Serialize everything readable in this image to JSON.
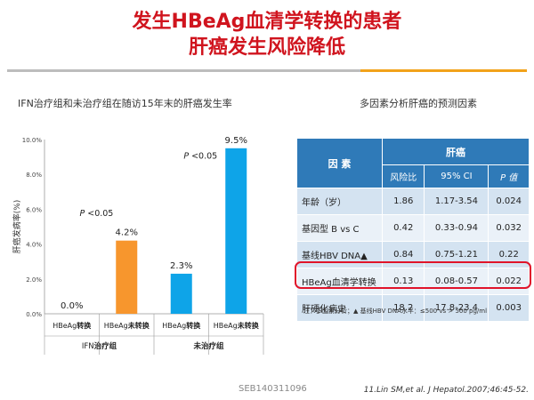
{
  "slide": {
    "title_line1": "发生HBeAg血清学转换的患者",
    "title_line2": "肝癌发生风险降低",
    "left_title": "IFN治疗组和未治疗组在随访15年末的肝癌发生率",
    "right_title": "多因素分析肝癌的预测因素",
    "footer_id": "SEB140311096",
    "citation": "11.Lin SM,et al. J Hepatol.2007;46:45-52."
  },
  "colors": {
    "title": "#d0141e",
    "bar_orange": "#f7962d",
    "bar_blue": "#0ea4e8",
    "table_header": "#2f7ab8",
    "highlight": "#e0142a"
  },
  "chart_data": {
    "type": "bar",
    "ylabel": "肝癌发病率(%)",
    "ylim": [
      0,
      10
    ],
    "yticks": [
      "0.0%",
      "2.0%",
      "4.0%",
      "6.0%",
      "8.0%",
      "10.0%"
    ],
    "bars": [
      {
        "prefix": "HBeAg",
        "suffix": "转换",
        "value": 0.0,
        "label": "0.0%",
        "color": "#f7962d"
      },
      {
        "prefix": "HBeAg",
        "suffix": "未转换",
        "value": 4.2,
        "label": "4.2%",
        "color": "#f7962d"
      },
      {
        "prefix": "HBeAg",
        "suffix": "转换",
        "value": 2.3,
        "label": "2.3%",
        "color": "#0ea4e8"
      },
      {
        "prefix": "HBeAg",
        "suffix": "未转换",
        "value": 9.5,
        "label": "9.5%",
        "color": "#0ea4e8"
      }
    ],
    "groups": [
      {
        "prefix": "IFN",
        "suffix": "治疗组"
      },
      {
        "prefix": "",
        "suffix": "未治疗组"
      }
    ],
    "annotations": [
      {
        "text": "P <0.05"
      },
      {
        "text": "P <0.05"
      }
    ]
  },
  "table": {
    "factor_header": "因 素",
    "group_header": "肝癌",
    "sub_headers": [
      "风险比",
      "95% CI",
      "P 值"
    ],
    "rows": [
      {
        "factor": "年龄（岁）",
        "hr": "1.86",
        "ci": "1.17-3.54",
        "p": "0.024"
      },
      {
        "factor": "基因型 B vs C",
        "hr": "0.42",
        "ci": "0.33-0.94",
        "p": "0.032"
      },
      {
        "factor": "基线HBV DNA▲",
        "hr": "0.84",
        "ci": "0.75-1.21",
        "p": "0.22"
      },
      {
        "factor": "HBeAg血清学转换",
        "hr": "0.13",
        "ci": "0.08-0.57",
        "p": "0.022"
      },
      {
        "factor": "肝硬化病史",
        "hr": "18.2",
        "ci": "17.8-23.4",
        "p": "0.003"
      }
    ],
    "note": "注：多因素分析；▲ 基线HBV DNA水平：≤500 vs > 500 pg/ml"
  }
}
